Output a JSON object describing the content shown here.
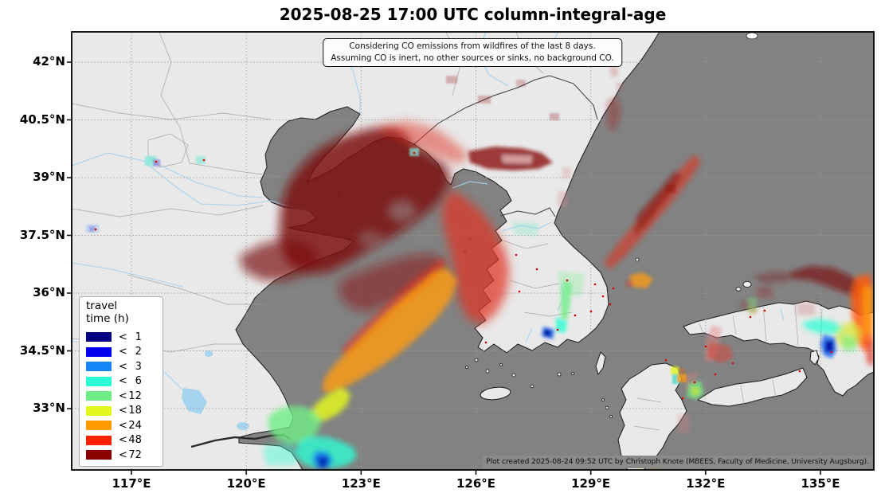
{
  "title": "2025-08-25 17:00 UTC column-integral-age",
  "annotation": {
    "line1": "Considering CO emissions from wildfires of the last 8 days.",
    "line2": "Assuming CO is inert, no other sources or sinks, no background CO."
  },
  "legend": {
    "title_line1": "travel",
    "title_line2": "time (h)",
    "entries": [
      {
        "op": "<",
        "value": "1",
        "color": "#000080"
      },
      {
        "op": "<",
        "value": "2",
        "color": "#0000EE"
      },
      {
        "op": "<",
        "value": "3",
        "color": "#1585F5"
      },
      {
        "op": "<",
        "value": "6",
        "color": "#2BFFD5"
      },
      {
        "op": "<",
        "value": "12",
        "color": "#6FEE87"
      },
      {
        "op": "<",
        "value": "18",
        "color": "#E2F51F"
      },
      {
        "op": "<",
        "value": "24",
        "color": "#FF9C00"
      },
      {
        "op": "<",
        "value": "48",
        "color": "#FF2200"
      },
      {
        "op": "<",
        "value": "72",
        "color": "#8B0000"
      }
    ]
  },
  "axes": {
    "x_ticks": [
      "117°E",
      "120°E",
      "123°E",
      "126°E",
      "129°E",
      "132°E",
      "135°E"
    ],
    "y_ticks": [
      "42°N",
      "40.5°N",
      "39°N",
      "37.5°N",
      "36°N",
      "34.5°N",
      "33°N"
    ]
  },
  "attribution": "Plot created 2025-08-24 09:52 UTC by Christoph Knote (MBEES, Faculty of Medicine, University Augsburg).",
  "map_colors": {
    "sea": "#828282",
    "land": "#E9E9E9",
    "coast": "#1a1a1a",
    "river": "#A6D3EE",
    "grid": "#9a9a9a",
    "fire_dot": "#DD0000"
  }
}
